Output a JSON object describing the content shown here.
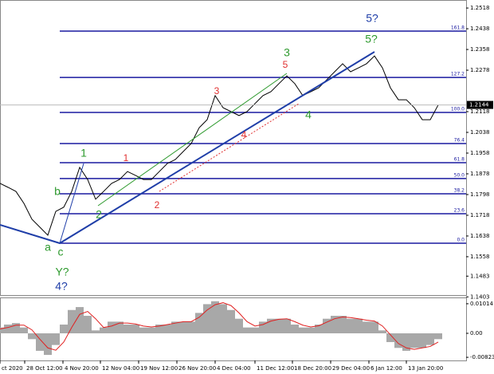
{
  "chart_data": [
    {
      "type": "line",
      "color": "#000000",
      "values": [
        1.1841,
        1.1826,
        1.181,
        1.1764,
        1.1703,
        1.1672,
        1.1641,
        1.1733,
        1.1749,
        1.181,
        1.1903,
        1.1856,
        1.178,
        1.181,
        1.1841,
        1.1856,
        1.1887,
        1.1872,
        1.1856,
        1.1856,
        1.1887,
        1.1918,
        1.1933,
        1.1964,
        1.1995,
        1.2056,
        1.2087,
        1.218,
        1.2133,
        1.2118,
        1.2103,
        1.2118,
        1.2149,
        1.218,
        1.2195,
        1.2226,
        1.2256,
        1.2226,
        1.218,
        1.2195,
        1.221,
        1.2241,
        1.2272,
        1.2303,
        1.2272,
        1.2287,
        1.2303,
        1.2333,
        1.2287,
        1.221,
        1.2164,
        1.2164,
        1.2133,
        1.2087,
        1.2087,
        1.2144
      ],
      "xlim": [
        0,
        58.5
      ],
      "xticks": [
        {
          "value": 0,
          "label": "ct 2020"
        },
        {
          "value": 3.1,
          "label": "28 Oct 12:00"
        },
        {
          "value": 7.9,
          "label": "4 Nov 20:00"
        },
        {
          "value": 12.6,
          "label": "12 Nov 04:00"
        },
        {
          "value": 17.4,
          "label": "19 Nov 12:00"
        },
        {
          "value": 22.2,
          "label": "26 Nov 20:00"
        },
        {
          "value": 27,
          "label": "4 Dec 04:00"
        },
        {
          "value": 32,
          "label": "11 Dec 12:00"
        },
        {
          "value": 36.7,
          "label": "18 Dec 20:00"
        },
        {
          "value": 41.5,
          "label": "29 Dec 04:00"
        },
        {
          "value": 46.3,
          "label": "6 Jan 12:00"
        },
        {
          "value": 51,
          "label": "13 Jan 20:00"
        }
      ],
      "ylim": [
        1.141,
        1.2549
      ],
      "yticks": [
        1.2518,
        1.2438,
        1.2358,
        1.2278,
        1.2118,
        1.2038,
        1.1958,
        1.1878,
        1.1798,
        1.1718,
        1.1638,
        1.1558,
        1.1483,
        1.1403
      ],
      "current_price": 1.2144,
      "fib_color": "#1a1aa0",
      "fib_levels": [
        {
          "value": 1.161,
          "label": "0.0"
        },
        {
          "value": 1.1724,
          "label": "23.6"
        },
        {
          "value": 1.1801,
          "label": "38.2"
        },
        {
          "value": 1.186,
          "label": "50.0"
        },
        {
          "value": 1.1921,
          "label": "61.8"
        },
        {
          "value": 1.1995,
          "label": "76.4"
        },
        {
          "value": 1.2115,
          "label": "100.0"
        },
        {
          "value": 1.225,
          "label": "127.2"
        },
        {
          "value": 1.2429,
          "label": "161.8"
        }
      ],
      "annotations": [
        "5?",
        "5?",
        "3",
        "5",
        "3",
        "4",
        "4",
        "1",
        "2",
        "1",
        "b",
        "2",
        "a",
        "c",
        "Y?",
        "4?"
      ]
    },
    {
      "type": "histogram-oscillator",
      "color": "#a8a8a8",
      "signal_color": "#e02020",
      "values": [
        0.002,
        0.003,
        0.0035,
        0.002,
        -0.002,
        -0.006,
        -0.0074,
        -0.004,
        0.003,
        0.008,
        0.009,
        0.006,
        0.001,
        0.002,
        0.004,
        0.004,
        0.003,
        0.003,
        0.002,
        0.002,
        0.003,
        0.003,
        0.004,
        0.004,
        0.004,
        0.007,
        0.01,
        0.011,
        0.01,
        0.008,
        0.005,
        0.002,
        0.002,
        0.004,
        0.005,
        0.005,
        0.005,
        0.003,
        0.002,
        0.002,
        0.003,
        0.005,
        0.006,
        0.006,
        0.005,
        0.005,
        0.004,
        0.004,
        0.001,
        -0.003,
        -0.005,
        -0.006,
        -0.005,
        -0.005,
        -0.004,
        -0.002
      ],
      "signal": [
        0.0015,
        0.002,
        0.0028,
        0.0028,
        0.0012,
        -0.002,
        -0.005,
        -0.0058,
        -0.003,
        0.002,
        0.0065,
        0.0075,
        0.005,
        0.002,
        0.0025,
        0.0035,
        0.0035,
        0.0032,
        0.0025,
        0.0022,
        0.0025,
        0.003,
        0.0035,
        0.004,
        0.004,
        0.0055,
        0.008,
        0.0098,
        0.0105,
        0.0095,
        0.007,
        0.004,
        0.0025,
        0.003,
        0.0042,
        0.0048,
        0.005,
        0.004,
        0.0028,
        0.0022,
        0.0026,
        0.0038,
        0.005,
        0.0056,
        0.0054,
        0.005,
        0.0045,
        0.0042,
        0.0025,
        -0.0005,
        -0.0035,
        -0.005,
        -0.0055,
        -0.005,
        -0.0045,
        -0.003
      ],
      "ylim": [
        -0.0093,
        0.0123
      ],
      "yticks": [
        0.01014,
        {
          "value": 0,
          "label": "0.00"
        },
        -0.00823
      ]
    }
  ]
}
